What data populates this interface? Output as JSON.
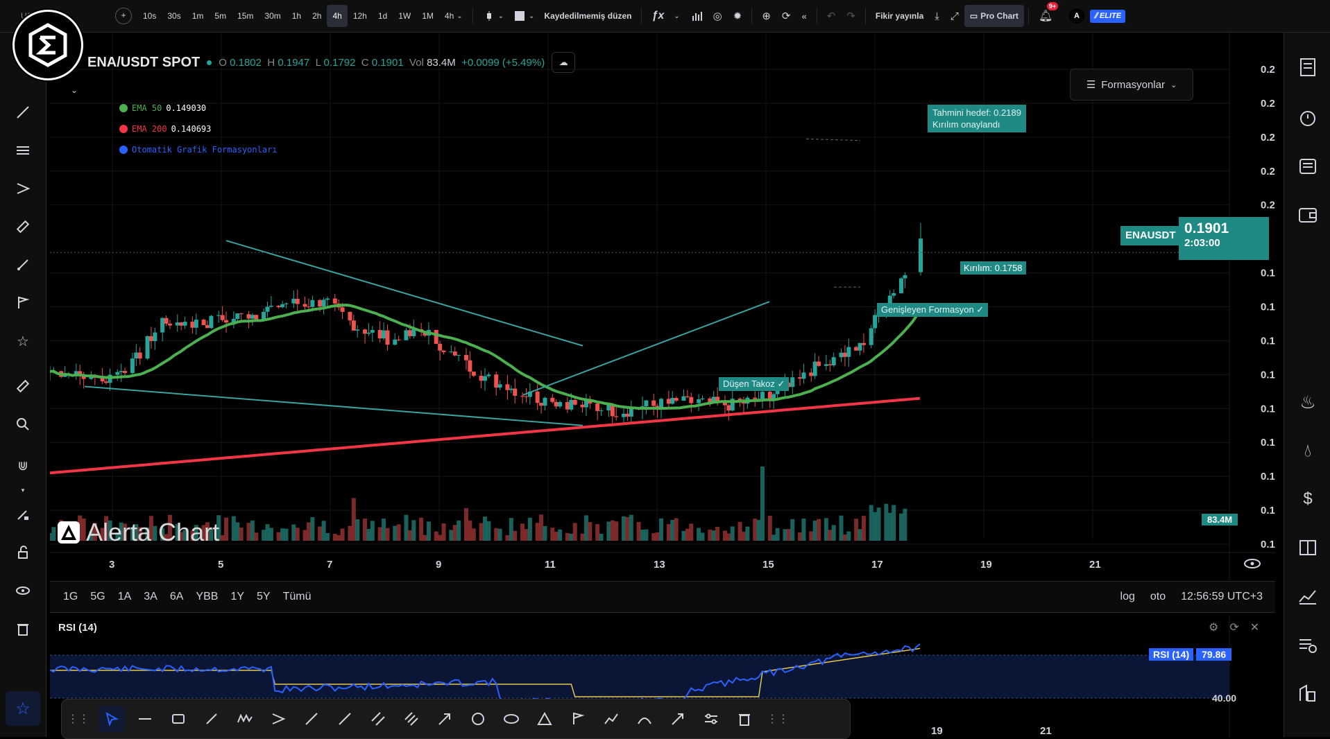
{
  "topbar": {
    "symbol": "USDT",
    "intervals": [
      "10s",
      "30s",
      "1m",
      "5m",
      "15m",
      "30m",
      "1h",
      "2h",
      "4h",
      "12h",
      "1d",
      "1W",
      "1M"
    ],
    "active_interval": "4h",
    "interval_dropdown": "4h",
    "layout_name": "Kaydedilmemiş düzen",
    "publish_label": "Fikir yayınla",
    "pro_chart_label": "Pro Chart",
    "notification_count": "9+",
    "avatar_letter": "A",
    "elite_label": "ELITE"
  },
  "chart": {
    "symbol_title": "ENA/USDT SPOT",
    "ohlc": {
      "o_label": "O",
      "o": "0.1802",
      "h_label": "H",
      "h": "0.1947",
      "l_label": "L",
      "l": "0.1792",
      "c_label": "C",
      "c": "0.1901",
      "vol_label": "Vol",
      "vol": "83.4M",
      "change": "+0.0099 (+5.49%)"
    },
    "legend": [
      {
        "label": "EMA 50",
        "value": "0.149030",
        "color": "#4caf50"
      },
      {
        "label": "EMA 200",
        "value": "0.140693",
        "color": "#f23645"
      },
      {
        "label": "Otomatik Grafik Formasyonları",
        "value": "",
        "color": "#2962ff"
      }
    ],
    "patterns_button": "Formasyonlar",
    "target_annotation": {
      "line1": "Tahmini hedef: 0.2189",
      "line2": "Kırılım onaylandı"
    },
    "breakout_label": "Kırılım: 0.1758",
    "expanding_label": "Genişleyen Formasyon ✓",
    "falling_wedge_label": "Düşen Takoz ✓",
    "price_ticks": [
      "0.2400",
      "0.2300",
      "0.2200",
      "0.2100",
      "0.2000",
      "0.1800",
      "0.1700",
      "0.1600",
      "0.1500",
      "0.1400",
      "0.1300",
      "0.1200",
      "0.1100",
      "0.1000"
    ],
    "last_price": "0.1901",
    "countdown": "2:03:00",
    "symbol_tag": "ENAUSDT",
    "volume_tag": "83.4M",
    "time_ticks": [
      "3",
      "5",
      "7",
      "9",
      "11",
      "13",
      "15",
      "17",
      "19",
      "21"
    ],
    "watermark": "Alerta Chart",
    "colors": {
      "up": "#26a69a",
      "down": "#ef5350",
      "ema50": "#4caf50",
      "ema200": "#f23645",
      "pattern": "#3aa3a0"
    }
  },
  "rangebar": {
    "ranges": [
      "1G",
      "5G",
      "1A",
      "3A",
      "6A",
      "YBB",
      "1Y",
      "5Y",
      "Tümü"
    ],
    "log_label": "log",
    "auto_label": "oto",
    "clock": "12:56:59 UTC+3"
  },
  "rsi": {
    "title": "RSI (14)",
    "tag_label": "RSI (14)",
    "tag_value": "79.86",
    "level_label": "40.00",
    "time_ticks": [
      "17",
      "19",
      "21"
    ]
  }
}
